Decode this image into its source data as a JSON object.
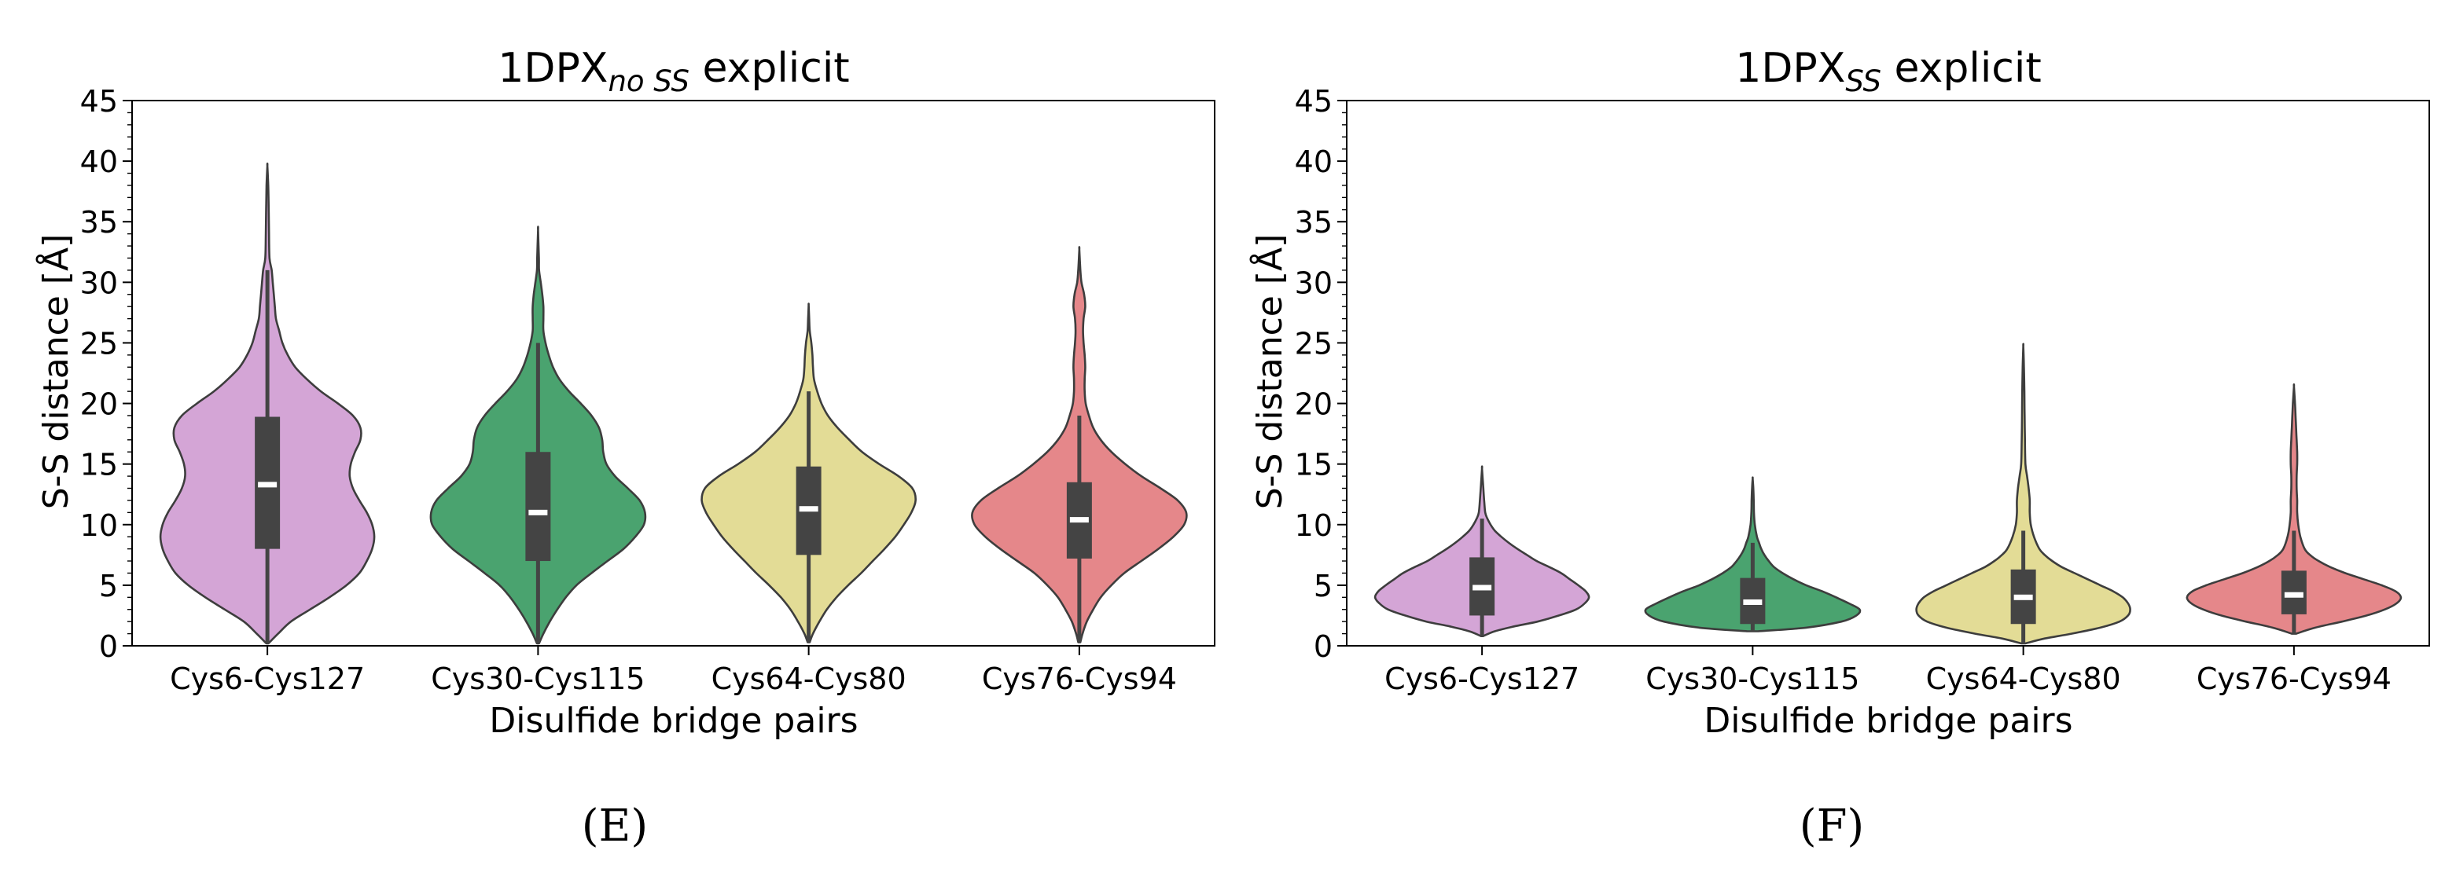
{
  "panels": [
    {
      "title_main": "1DPX",
      "title_sub": "no SS",
      "title_rest": " explicit",
      "panel_label": "(E)"
    },
    {
      "title_main": "1DPX",
      "title_sub": "SS",
      "title_rest": " explicit",
      "panel_label": "(F)"
    }
  ],
  "chart_data": [
    {
      "type": "violin",
      "title": "1DPX_no SS explicit",
      "xlabel": "Disulfide bridge pairs",
      "ylabel": "S-S distance [Å]",
      "ylim": [
        0,
        45
      ],
      "yticks": [
        0,
        5,
        10,
        15,
        20,
        25,
        30,
        35,
        40,
        45
      ],
      "categories": [
        "Cys6-Cys127",
        "Cys30-Cys115",
        "Cys64-Cys80",
        "Cys76-Cys94"
      ],
      "colors": [
        "#d4a5d6",
        "#4aa36f",
        "#e3dc96",
        "#e5878a"
      ],
      "series": [
        {
          "name": "Cys6-Cys127",
          "min": 0.2,
          "max": 39.6,
          "q1": 8.0,
          "median": 13.3,
          "q3": 18.9,
          "whisker_low": 0.2,
          "whisker_high": 31.0,
          "profile": [
            [
              0.2,
              0.01
            ],
            [
              1,
              0.1
            ],
            [
              2,
              0.22
            ],
            [
              3,
              0.4
            ],
            [
              4,
              0.58
            ],
            [
              5,
              0.74
            ],
            [
              6,
              0.86
            ],
            [
              7,
              0.93
            ],
            [
              8,
              0.98
            ],
            [
              9,
              1.0
            ],
            [
              10,
              0.98
            ],
            [
              11,
              0.93
            ],
            [
              12,
              0.86
            ],
            [
              13,
              0.8
            ],
            [
              14,
              0.77
            ],
            [
              15,
              0.78
            ],
            [
              16,
              0.82
            ],
            [
              17,
              0.87
            ],
            [
              18,
              0.87
            ],
            [
              19,
              0.8
            ],
            [
              20,
              0.66
            ],
            [
              21,
              0.5
            ],
            [
              22,
              0.37
            ],
            [
              23,
              0.26
            ],
            [
              24,
              0.19
            ],
            [
              25,
              0.14
            ],
            [
              26,
              0.11
            ],
            [
              27,
              0.08
            ],
            [
              28,
              0.07
            ],
            [
              29,
              0.06
            ],
            [
              30,
              0.05
            ],
            [
              31,
              0.04
            ],
            [
              32,
              0.02
            ],
            [
              34,
              0.015
            ],
            [
              36,
              0.012
            ],
            [
              38,
              0.008
            ],
            [
              39.6,
              0.0
            ]
          ]
        },
        {
          "name": "Cys30-Cys115",
          "min": 0.2,
          "max": 34.3,
          "q1": 7.0,
          "median": 11.0,
          "q3": 16.0,
          "whisker_low": 0.2,
          "whisker_high": 25.0,
          "profile": [
            [
              0.2,
              0.01
            ],
            [
              1,
              0.05
            ],
            [
              2,
              0.11
            ],
            [
              3,
              0.18
            ],
            [
              4,
              0.26
            ],
            [
              5,
              0.36
            ],
            [
              6,
              0.5
            ],
            [
              7,
              0.65
            ],
            [
              8,
              0.8
            ],
            [
              9,
              0.91
            ],
            [
              10,
              0.99
            ],
            [
              11,
              1.0
            ],
            [
              12,
              0.95
            ],
            [
              13,
              0.84
            ],
            [
              14,
              0.72
            ],
            [
              15,
              0.64
            ],
            [
              16,
              0.61
            ],
            [
              17,
              0.6
            ],
            [
              18,
              0.57
            ],
            [
              19,
              0.5
            ],
            [
              20,
              0.4
            ],
            [
              21,
              0.29
            ],
            [
              22,
              0.2
            ],
            [
              23,
              0.14
            ],
            [
              24,
              0.1
            ],
            [
              25,
              0.07
            ],
            [
              26,
              0.05
            ],
            [
              27,
              0.05
            ],
            [
              28,
              0.05
            ],
            [
              29,
              0.04
            ],
            [
              30,
              0.025
            ],
            [
              31,
              0.01
            ],
            [
              32,
              0.008
            ],
            [
              34.3,
              0.0
            ]
          ]
        },
        {
          "name": "Cys64-Cys80",
          "min": 0.3,
          "max": 28.1,
          "q1": 7.5,
          "median": 11.3,
          "q3": 14.8,
          "whisker_low": 0.3,
          "whisker_high": 21.0,
          "profile": [
            [
              0.3,
              0.01
            ],
            [
              1,
              0.04
            ],
            [
              2,
              0.1
            ],
            [
              3,
              0.17
            ],
            [
              4,
              0.26
            ],
            [
              5,
              0.37
            ],
            [
              6,
              0.49
            ],
            [
              7,
              0.6
            ],
            [
              8,
              0.71
            ],
            [
              9,
              0.81
            ],
            [
              10,
              0.89
            ],
            [
              11,
              0.96
            ],
            [
              12,
              1.0
            ],
            [
              13,
              0.97
            ],
            [
              14,
              0.84
            ],
            [
              15,
              0.66
            ],
            [
              16,
              0.5
            ],
            [
              17,
              0.38
            ],
            [
              18,
              0.27
            ],
            [
              19,
              0.18
            ],
            [
              20,
              0.12
            ],
            [
              21,
              0.08
            ],
            [
              22,
              0.05
            ],
            [
              23,
              0.04
            ],
            [
              24,
              0.035
            ],
            [
              25,
              0.025
            ],
            [
              26,
              0.01
            ],
            [
              27,
              0.005
            ],
            [
              28.1,
              0.0
            ]
          ]
        },
        {
          "name": "Cys76-Cys94",
          "min": 0.3,
          "max": 32.7,
          "q1": 7.2,
          "median": 10.4,
          "q3": 13.5,
          "whisker_low": 0.3,
          "whisker_high": 19.0,
          "profile": [
            [
              0.3,
              0.01
            ],
            [
              1,
              0.03
            ],
            [
              2,
              0.07
            ],
            [
              3,
              0.13
            ],
            [
              4,
              0.2
            ],
            [
              5,
              0.3
            ],
            [
              6,
              0.42
            ],
            [
              7,
              0.58
            ],
            [
              8,
              0.74
            ],
            [
              9,
              0.88
            ],
            [
              10,
              0.98
            ],
            [
              11,
              1.0
            ],
            [
              12,
              0.92
            ],
            [
              13,
              0.76
            ],
            [
              14,
              0.58
            ],
            [
              15,
              0.43
            ],
            [
              16,
              0.3
            ],
            [
              17,
              0.2
            ],
            [
              18,
              0.13
            ],
            [
              19,
              0.09
            ],
            [
              20,
              0.06
            ],
            [
              21,
              0.05
            ],
            [
              22,
              0.05
            ],
            [
              23,
              0.055
            ],
            [
              24,
              0.05
            ],
            [
              25,
              0.04
            ],
            [
              26,
              0.035
            ],
            [
              27,
              0.04
            ],
            [
              28,
              0.055
            ],
            [
              29,
              0.045
            ],
            [
              30,
              0.02
            ],
            [
              31,
              0.01
            ],
            [
              32.7,
              0.0
            ]
          ]
        }
      ]
    },
    {
      "type": "violin",
      "title": "1DPX_SS explicit",
      "xlabel": "Disulfide bridge pairs",
      "ylabel": "S-S distance [Å]",
      "ylim": [
        0,
        45
      ],
      "yticks": [
        0,
        5,
        10,
        15,
        20,
        25,
        30,
        35,
        40,
        45
      ],
      "categories": [
        "Cys6-Cys127",
        "Cys30-Cys115",
        "Cys64-Cys80",
        "Cys76-Cys94"
      ],
      "colors": [
        "#d4a5d6",
        "#4aa36f",
        "#e3dc96",
        "#e5878a"
      ],
      "series": [
        {
          "name": "Cys6-Cys127",
          "min": 0.8,
          "max": 14.6,
          "q1": 2.5,
          "median": 4.8,
          "q3": 7.3,
          "whisker_low": 0.8,
          "whisker_high": 10.5,
          "profile": [
            [
              0.8,
              0.01
            ],
            [
              1.2,
              0.12
            ],
            [
              1.6,
              0.3
            ],
            [
              2,
              0.52
            ],
            [
              2.5,
              0.72
            ],
            [
              3,
              0.88
            ],
            [
              3.5,
              0.96
            ],
            [
              4,
              1.0
            ],
            [
              4.5,
              0.97
            ],
            [
              5,
              0.9
            ],
            [
              5.5,
              0.82
            ],
            [
              6,
              0.74
            ],
            [
              6.5,
              0.63
            ],
            [
              7,
              0.51
            ],
            [
              7.5,
              0.42
            ],
            [
              8,
              0.33
            ],
            [
              8.5,
              0.25
            ],
            [
              9,
              0.18
            ],
            [
              9.5,
              0.12
            ],
            [
              10,
              0.08
            ],
            [
              10.5,
              0.05
            ],
            [
              11,
              0.03
            ],
            [
              12,
              0.02
            ],
            [
              13,
              0.012
            ],
            [
              14.6,
              0.0
            ]
          ]
        },
        {
          "name": "Cys30-Cys115",
          "min": 1.2,
          "max": 13.8,
          "q1": 1.8,
          "median": 3.6,
          "q3": 5.6,
          "whisker_low": 1.2,
          "whisker_high": 8.5,
          "profile": [
            [
              1.2,
              0.05
            ],
            [
              1.5,
              0.5
            ],
            [
              2,
              0.83
            ],
            [
              2.5,
              0.97
            ],
            [
              3,
              1.0
            ],
            [
              3.5,
              0.9
            ],
            [
              4,
              0.78
            ],
            [
              4.5,
              0.65
            ],
            [
              5,
              0.5
            ],
            [
              5.5,
              0.38
            ],
            [
              6,
              0.28
            ],
            [
              6.5,
              0.2
            ],
            [
              7,
              0.15
            ],
            [
              7.5,
              0.11
            ],
            [
              8,
              0.08
            ],
            [
              8.5,
              0.06
            ],
            [
              9,
              0.04
            ],
            [
              10,
              0.02
            ],
            [
              11,
              0.012
            ],
            [
              12,
              0.01
            ],
            [
              13,
              0.006
            ],
            [
              13.8,
              0.0
            ]
          ]
        },
        {
          "name": "Cys64-Cys80",
          "min": 0.2,
          "max": 24.7,
          "q1": 1.8,
          "median": 4.0,
          "q3": 6.3,
          "whisker_low": 0.2,
          "whisker_high": 9.5,
          "profile": [
            [
              0.2,
              0.02
            ],
            [
              0.6,
              0.2
            ],
            [
              1,
              0.45
            ],
            [
              1.5,
              0.72
            ],
            [
              2,
              0.9
            ],
            [
              2.5,
              0.98
            ],
            [
              3,
              1.0
            ],
            [
              3.5,
              0.98
            ],
            [
              4,
              0.93
            ],
            [
              4.5,
              0.84
            ],
            [
              5,
              0.72
            ],
            [
              5.5,
              0.6
            ],
            [
              6,
              0.48
            ],
            [
              6.5,
              0.36
            ],
            [
              7,
              0.27
            ],
            [
              7.5,
              0.2
            ],
            [
              8,
              0.15
            ],
            [
              9,
              0.1
            ],
            [
              10,
              0.07
            ],
            [
              11,
              0.06
            ],
            [
              12,
              0.06
            ],
            [
              13,
              0.05
            ],
            [
              14,
              0.035
            ],
            [
              15,
              0.02
            ],
            [
              17,
              0.015
            ],
            [
              19,
              0.012
            ],
            [
              21,
              0.01
            ],
            [
              23,
              0.006
            ],
            [
              24.7,
              0.0
            ]
          ]
        },
        {
          "name": "Cys76-Cys94",
          "min": 1.0,
          "max": 21.4,
          "q1": 2.6,
          "median": 4.2,
          "q3": 6.2,
          "whisker_low": 1.0,
          "whisker_high": 9.5,
          "profile": [
            [
              1.0,
              0.02
            ],
            [
              1.5,
              0.2
            ],
            [
              2,
              0.45
            ],
            [
              2.5,
              0.68
            ],
            [
              3,
              0.85
            ],
            [
              3.5,
              0.96
            ],
            [
              4,
              1.0
            ],
            [
              4.5,
              0.95
            ],
            [
              5,
              0.82
            ],
            [
              5.5,
              0.65
            ],
            [
              6,
              0.48
            ],
            [
              6.5,
              0.34
            ],
            [
              7,
              0.23
            ],
            [
              7.5,
              0.15
            ],
            [
              8,
              0.1
            ],
            [
              9,
              0.06
            ],
            [
              10,
              0.04
            ],
            [
              11,
              0.03
            ],
            [
              12,
              0.03
            ],
            [
              13,
              0.025
            ],
            [
              14,
              0.025
            ],
            [
              15,
              0.03
            ],
            [
              16,
              0.03
            ],
            [
              17,
              0.025
            ],
            [
              18,
              0.02
            ],
            [
              19,
              0.015
            ],
            [
              20,
              0.01
            ],
            [
              21.4,
              0.0
            ]
          ]
        }
      ]
    }
  ]
}
